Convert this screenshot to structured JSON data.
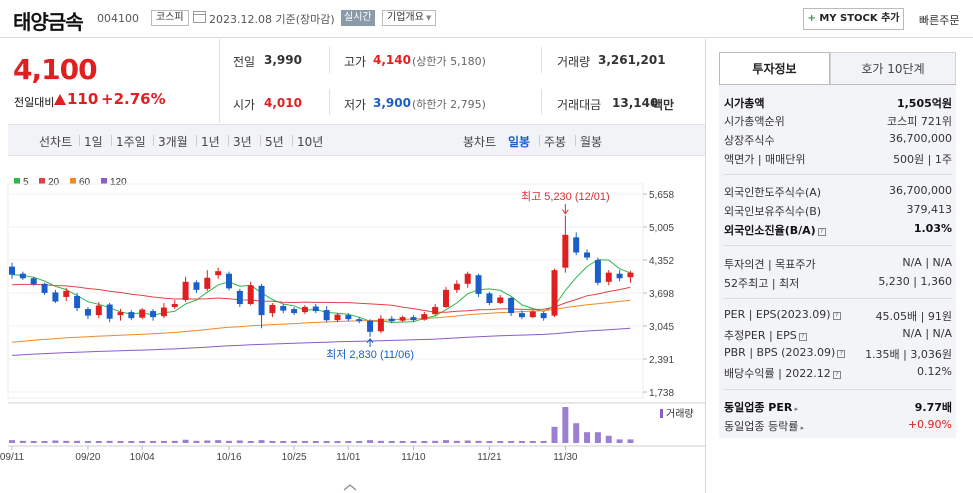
{
  "header": {
    "stock_name": "태양금속",
    "stock_code": "004100",
    "market": "코스피",
    "base_date": "2023.12.08 기준(장마감)",
    "realtime_label": "실시간",
    "overview_label": "기업개요",
    "mystock_plus": "+",
    "mystock_label": "MY STOCK 추가",
    "quick_order": "빠른주문"
  },
  "quote": {
    "price": "4,100",
    "change_label": "전일대비",
    "change_amount": "110",
    "change_percent": "+2.76%",
    "prev_label": "전일",
    "prev_value": "3,990",
    "high_label": "고가",
    "high_value": "4,140",
    "upper_limit": "(상한가 5,180)",
    "volume_label": "거래량",
    "volume_value": "3,261,201",
    "open_label": "시가",
    "open_value": "4,010",
    "low_label": "저가",
    "low_value": "3,900",
    "lower_limit": "(하한가 2,795)",
    "amount_label": "거래대금",
    "amount_value": "13,140",
    "amount_unit": "백만"
  },
  "period_tabs": {
    "line_chart": "선차트",
    "periods": [
      "1일",
      "1주일",
      "3개월",
      "1년",
      "3년",
      "5년",
      "10년"
    ],
    "candle_chart": "봉차트",
    "candle_periods": [
      "일봉",
      "주봉",
      "월봉"
    ],
    "active_candle_period": "일봉"
  },
  "chart_data": {
    "type": "candlestick",
    "legend": [
      {
        "name": "5",
        "color": "#2cb84a"
      },
      {
        "name": "20",
        "color": "#e04343"
      },
      {
        "name": "60",
        "color": "#f08a24"
      },
      {
        "name": "120",
        "color": "#8c5cc8"
      }
    ],
    "y_ticks": [
      5658,
      5005,
      4352,
      3698,
      3045,
      2391,
      1738
    ],
    "y_range": [
      1738,
      5658
    ],
    "x_tick_labels": [
      "09/11",
      "09/20",
      "10/04",
      "10/16",
      "10/25",
      "11/01",
      "11/10",
      "11/21",
      "11/30"
    ],
    "x_tick_index": [
      0,
      7,
      12,
      20,
      26,
      31,
      37,
      44,
      51
    ],
    "candles": [
      [
        4220,
        4060,
        4300,
        3980
      ],
      [
        4080,
        3990,
        4120,
        3960
      ],
      [
        3990,
        3870,
        4020,
        3840
      ],
      [
        3880,
        3700,
        3900,
        3660
      ],
      [
        3710,
        3530,
        3760,
        3500
      ],
      [
        3620,
        3740,
        3800,
        3540
      ],
      [
        3640,
        3400,
        3700,
        3340
      ],
      [
        3380,
        3250,
        3420,
        3180
      ],
      [
        3260,
        3450,
        3520,
        3200
      ],
      [
        3470,
        3190,
        3500,
        3120
      ],
      [
        3260,
        3320,
        3380,
        3150
      ],
      [
        3320,
        3200,
        3360,
        3160
      ],
      [
        3210,
        3370,
        3400,
        3180
      ],
      [
        3340,
        3220,
        3380,
        3150
      ],
      [
        3240,
        3410,
        3500,
        3200
      ],
      [
        3420,
        3480,
        3560,
        3380
      ],
      [
        3560,
        3920,
        4020,
        3520
      ],
      [
        3910,
        3760,
        3950,
        3700
      ],
      [
        3780,
        4000,
        4150,
        3740
      ],
      [
        4050,
        4130,
        4200,
        3980
      ],
      [
        4080,
        3790,
        4120,
        3750
      ],
      [
        3740,
        3480,
        3780,
        3420
      ],
      [
        3480,
        3850,
        3920,
        3450
      ],
      [
        3840,
        3260,
        3880,
        3000
      ],
      [
        3300,
        3460,
        3500,
        3220
      ],
      [
        3440,
        3350,
        3480,
        3300
      ],
      [
        3380,
        3300,
        3420,
        3260
      ],
      [
        3320,
        3420,
        3460,
        3280
      ],
      [
        3430,
        3340,
        3480,
        3300
      ],
      [
        3360,
        3160,
        3440,
        3120
      ],
      [
        3160,
        3270,
        3300,
        3120
      ],
      [
        3260,
        3180,
        3300,
        3140
      ],
      [
        3180,
        3140,
        3220,
        3100
      ],
      [
        3150,
        2930,
        3180,
        2830
      ],
      [
        2940,
        3190,
        3260,
        2900
      ],
      [
        3190,
        3140,
        3240,
        3100
      ],
      [
        3150,
        3220,
        3250,
        3120
      ],
      [
        3220,
        3160,
        3260,
        3130
      ],
      [
        3170,
        3280,
        3320,
        3150
      ],
      [
        3280,
        3420,
        3480,
        3250
      ],
      [
        3420,
        3760,
        3820,
        3400
      ],
      [
        3760,
        3880,
        3950,
        3700
      ],
      [
        3880,
        4080,
        4120,
        3800
      ],
      [
        4050,
        3680,
        4080,
        3620
      ],
      [
        3690,
        3500,
        3720,
        3460
      ],
      [
        3500,
        3610,
        3660,
        3480
      ],
      [
        3600,
        3300,
        3620,
        3240
      ],
      [
        3300,
        3220,
        3350,
        3180
      ],
      [
        3220,
        3330,
        3360,
        3200
      ],
      [
        3300,
        3200,
        3330,
        3150
      ],
      [
        3250,
        4150,
        4180,
        3220
      ],
      [
        4200,
        4850,
        5230,
        4100
      ],
      [
        4800,
        4500,
        4900,
        4450
      ],
      [
        4500,
        4400,
        4560,
        4350
      ],
      [
        4350,
        3900,
        4400,
        3850
      ],
      [
        3920,
        4100,
        4150,
        3850
      ],
      [
        4080,
        3990,
        4150,
        3930
      ],
      [
        4010,
        4100,
        4140,
        3900
      ]
    ],
    "volume_label": "거래량",
    "high_annotation": "최고 5,230 (12/01)",
    "low_annotation": "최저 2,830 (11/06)"
  },
  "investment_info": {
    "tab_info": "투자정보",
    "tab_orderbook": "호가 10단계",
    "market_cap_label": "시가총액",
    "market_cap_value": "1,505억원",
    "market_cap_rank_label": "시가총액순위",
    "market_cap_rank_value": "코스피 721위",
    "shares_label": "상장주식수",
    "shares_value": "36,700,000",
    "par_label": "액면가 | 매매단위",
    "par_value": "500원 | 1주",
    "foreign_limit_label": "외국인한도주식수(A)",
    "foreign_limit_value": "36,700,000",
    "foreign_hold_label": "외국인보유주식수(B)",
    "foreign_hold_value": "379,413",
    "foreign_rate_label": "외국인소진율(B/A)",
    "foreign_rate_value": "1.03%",
    "opinion_label": "투자의견 | 목표주가",
    "opinion_value": "N/A | N/A",
    "week52_label": "52주최고 | 최저",
    "week52_value": "5,230 | 1,360",
    "per_label": "PER | EPS(2023.09)",
    "per_value": "45.05배 | 91원",
    "est_per_label": "추정PER | EPS",
    "est_per_value": "N/A | N/A",
    "pbr_label": "PBR | BPS (2023.09)",
    "pbr_value": "1.35배 | 3,036원",
    "dividend_label": "배당수익률 | 2022.12",
    "dividend_value": "0.12%",
    "sector_per_label": "동일업종 PER",
    "sector_per_value": "9.77배",
    "sector_change_label": "동일업종 등락률",
    "sector_change_value": "+0.90%"
  }
}
